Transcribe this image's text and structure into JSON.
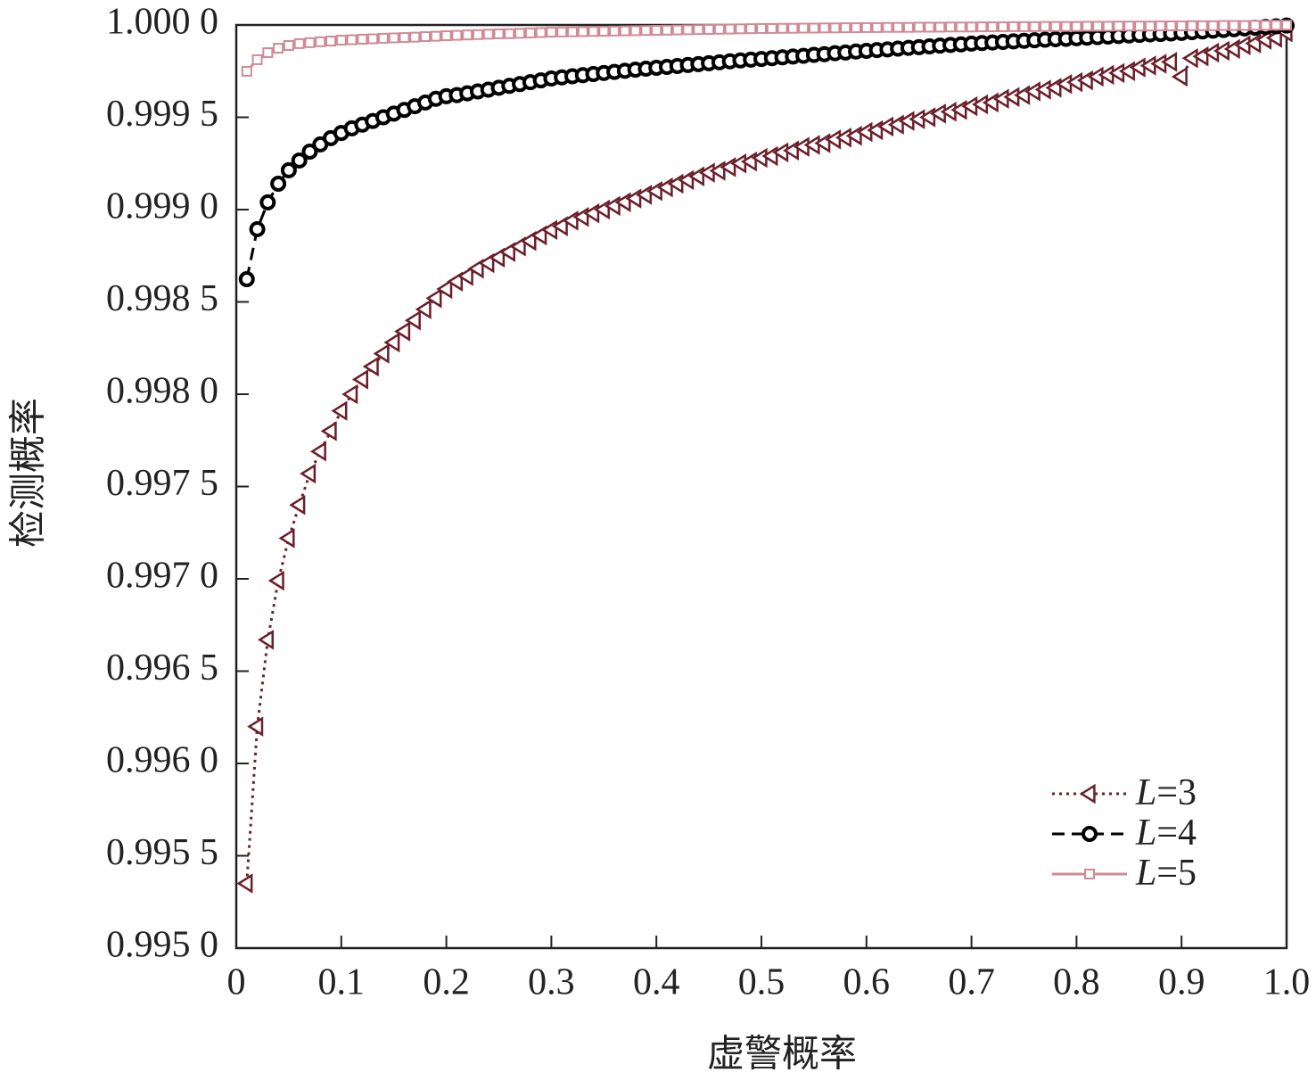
{
  "chart_data": {
    "type": "line",
    "xlabel": "虚警概率",
    "ylabel": "检测概率",
    "x": [
      0.01,
      0.02,
      0.03,
      0.04,
      0.05,
      0.06,
      0.07,
      0.08,
      0.09,
      0.1,
      0.11,
      0.12,
      0.13,
      0.14,
      0.15,
      0.16,
      0.17,
      0.18,
      0.19,
      0.2,
      0.21,
      0.22,
      0.23,
      0.24,
      0.25,
      0.26,
      0.27,
      0.28,
      0.29,
      0.3,
      0.31,
      0.32,
      0.33,
      0.34,
      0.35,
      0.36,
      0.37,
      0.38,
      0.39,
      0.4,
      0.41,
      0.42,
      0.43,
      0.44,
      0.45,
      0.46,
      0.47,
      0.48,
      0.49,
      0.5,
      0.51,
      0.52,
      0.53,
      0.54,
      0.55,
      0.56,
      0.57,
      0.58,
      0.59,
      0.6,
      0.61,
      0.62,
      0.63,
      0.64,
      0.65,
      0.66,
      0.67,
      0.68,
      0.69,
      0.7,
      0.71,
      0.72,
      0.73,
      0.74,
      0.75,
      0.76,
      0.77,
      0.78,
      0.79,
      0.8,
      0.81,
      0.82,
      0.83,
      0.84,
      0.85,
      0.86,
      0.87,
      0.88,
      0.89,
      0.9,
      0.91,
      0.92,
      0.93,
      0.94,
      0.95,
      0.96,
      0.97,
      0.98,
      0.99,
      1.0
    ],
    "series": [
      {
        "name": "L=3",
        "color": "#6b1f2a",
        "linestyle": "dotted",
        "marker": "triangle-left",
        "values": [
          0.99535,
          0.9962,
          0.99667,
          0.99699,
          0.99722,
          0.9974,
          0.99757,
          0.99769,
          0.9978,
          0.99791,
          0.998,
          0.99808,
          0.99815,
          0.99822,
          0.99828,
          0.99834,
          0.9984,
          0.99846,
          0.99852,
          0.99857,
          0.99861,
          0.99864,
          0.99868,
          0.99871,
          0.99874,
          0.99877,
          0.9988,
          0.99883,
          0.99886,
          0.99889,
          0.99891,
          0.99894,
          0.99896,
          0.99898,
          0.999,
          0.99902,
          0.99904,
          0.99906,
          0.99908,
          0.9991,
          0.99912,
          0.99914,
          0.99916,
          0.99918,
          0.9992,
          0.99921,
          0.99923,
          0.99925,
          0.99926,
          0.99928,
          0.99929,
          0.99931,
          0.99932,
          0.99934,
          0.99935,
          0.99936,
          0.99938,
          0.99939,
          0.9994,
          0.99942,
          0.99943,
          0.99945,
          0.99946,
          0.99948,
          0.99949,
          0.9995,
          0.99952,
          0.99953,
          0.99954,
          0.99956,
          0.99957,
          0.99958,
          0.9996,
          0.99961,
          0.99962,
          0.99964,
          0.99965,
          0.99966,
          0.99968,
          0.99969,
          0.9997,
          0.99972,
          0.99973,
          0.99974,
          0.99975,
          0.99977,
          0.99978,
          0.99979,
          0.9998,
          0.99972,
          0.99982,
          0.99983,
          0.99985,
          0.99986,
          0.99987,
          0.99989,
          0.9999,
          0.99992,
          0.99993,
          0.99996
        ]
      },
      {
        "name": "L=4",
        "color": "#000000",
        "linestyle": "dashed",
        "marker": "circle",
        "values": [
          0.998623,
          0.998894,
          0.999039,
          0.99914,
          0.999213,
          0.999266,
          0.999314,
          0.999353,
          0.999387,
          0.999415,
          0.99944,
          0.99946,
          0.99948,
          0.9995,
          0.99952,
          0.99954,
          0.99956,
          0.99958,
          0.9996,
          0.999614,
          0.99962,
          0.99963,
          0.99964,
          0.99965,
          0.99966,
          0.99967,
          0.99968,
          0.99969,
          0.9997,
          0.99971,
          0.999716,
          0.999722,
          0.999728,
          0.999734,
          0.99974,
          0.999746,
          0.999752,
          0.999758,
          0.999763,
          0.999768,
          0.999773,
          0.999778,
          0.999783,
          0.999788,
          0.999793,
          0.999798,
          0.999803,
          0.999808,
          0.999812,
          0.999816,
          0.99982,
          0.999825,
          0.999829,
          0.999833,
          0.999838,
          0.999842,
          0.999847,
          0.999851,
          0.999856,
          0.99986,
          0.999864,
          0.999868,
          0.999872,
          0.999876,
          0.99988,
          0.999884,
          0.999888,
          0.999892,
          0.999895,
          0.999899,
          0.999902,
          0.999905,
          0.999908,
          0.999911,
          0.999914,
          0.999917,
          0.99992,
          0.999923,
          0.999925,
          0.999928,
          0.999931,
          0.999934,
          0.999937,
          0.99994,
          0.999943,
          0.999946,
          0.999949,
          0.999951,
          0.999954,
          0.999957,
          0.999961,
          0.999965,
          0.999969,
          0.999973,
          0.999977,
          0.999981,
          0.999985,
          0.999989,
          0.999993,
          0.999997
        ]
      },
      {
        "name": "L=5",
        "color": "#d08a96",
        "linestyle": "solid",
        "marker": "square",
        "values": [
          0.999749,
          0.999812,
          0.99985,
          0.999874,
          0.999889,
          0.999899,
          0.999904,
          0.999909,
          0.999913,
          0.999918,
          0.99992,
          0.999923,
          0.999925,
          0.999928,
          0.99993,
          0.999932,
          0.999934,
          0.999937,
          0.999939,
          0.999942,
          0.999944,
          0.999946,
          0.999948,
          0.99995,
          0.999952,
          0.999953,
          0.999955,
          0.999957,
          0.999959,
          0.999961,
          0.999962,
          0.999963,
          0.999964,
          0.999965,
          0.999966,
          0.999967,
          0.999968,
          0.999969,
          0.99997,
          0.999971,
          0.999972,
          0.999973,
          0.999974,
          0.999975,
          0.999976,
          0.999977,
          0.999978,
          0.999979,
          0.99998,
          0.999981,
          0.999981,
          0.999982,
          0.999982,
          0.999983,
          0.999983,
          0.999984,
          0.999984,
          0.999985,
          0.999985,
          0.999986,
          0.999986,
          0.999987,
          0.999987,
          0.999987,
          0.999988,
          0.999988,
          0.999988,
          0.999989,
          0.999989,
          0.999989,
          0.99999,
          0.99999,
          0.99999,
          0.999991,
          0.999991,
          0.999991,
          0.999992,
          0.999992,
          0.999992,
          0.999992,
          0.999993,
          0.999993,
          0.999993,
          0.999994,
          0.999994,
          0.999994,
          0.999994,
          0.999995,
          0.999995,
          0.999995,
          0.999996,
          0.999996,
          0.999996,
          0.999997,
          0.999997,
          0.999997,
          0.999998,
          0.999998,
          0.999999,
          0.999999
        ]
      }
    ],
    "xlim": [
      0,
      1
    ],
    "ylim": [
      0.995,
      1
    ],
    "xticks": [
      0,
      0.1,
      0.2,
      0.3,
      0.4,
      0.5,
      0.6,
      0.7,
      0.8,
      0.9,
      {
        "value": 1,
        "label": "1.0"
      }
    ],
    "yticks": [
      {
        "value": 0.995,
        "label": "0.995 0"
      },
      {
        "value": 0.9955,
        "label": "0.995 5"
      },
      {
        "value": 0.996,
        "label": "0.996 0"
      },
      {
        "value": 0.9965,
        "label": "0.996 5"
      },
      {
        "value": 0.997,
        "label": "0.997 0"
      },
      {
        "value": 0.9975,
        "label": "0.997 5"
      },
      {
        "value": 0.998,
        "label": "0.998 0"
      },
      {
        "value": 0.9985,
        "label": "0.998 5"
      },
      {
        "value": 0.999,
        "label": "0.999 0"
      },
      {
        "value": 0.9995,
        "label": "0.999 5"
      },
      {
        "value": 1,
        "label": "1.000 0"
      }
    ],
    "grid": false,
    "legend": "lower right"
  }
}
